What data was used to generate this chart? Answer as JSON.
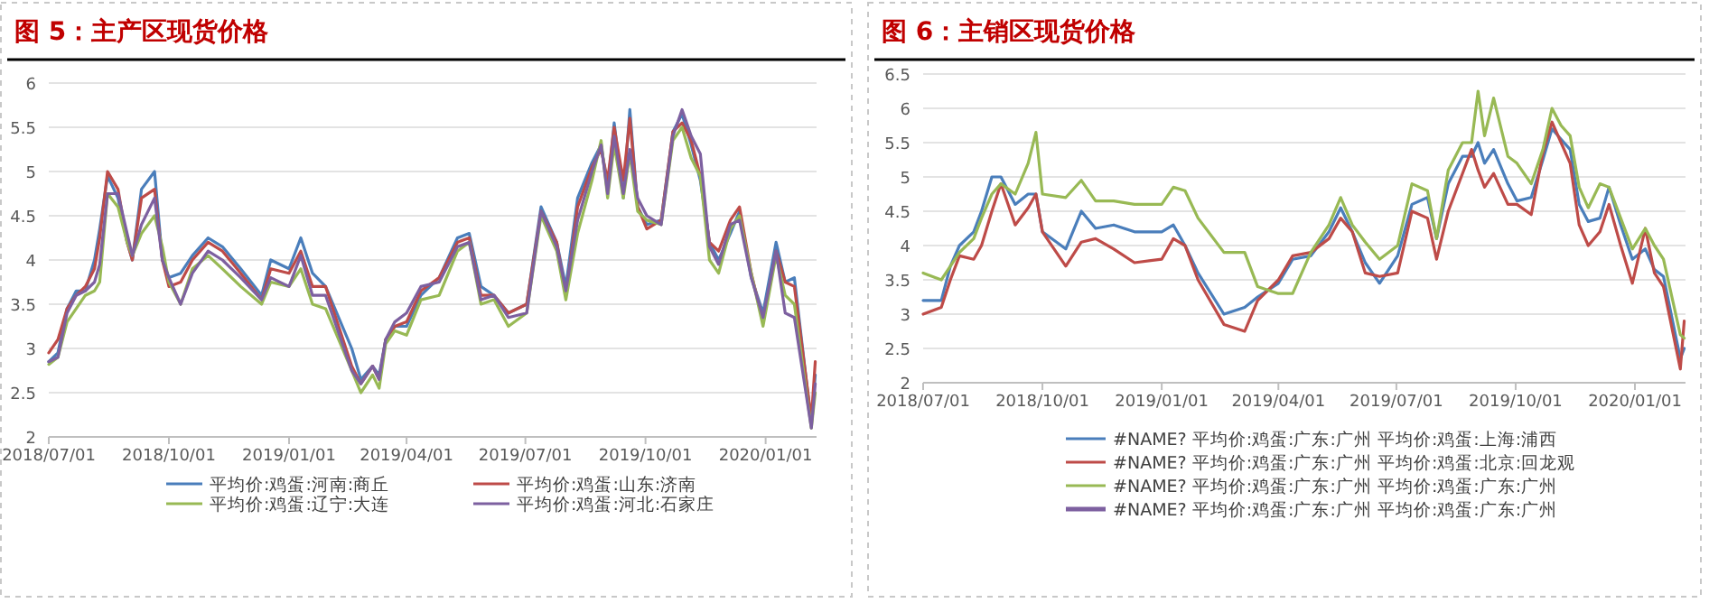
{
  "chart_data": [
    {
      "type": "line",
      "title": "图 5：主产区现货价格",
      "grid": "y",
      "legend": "bottom",
      "x": [
        "2018-07-01",
        "2018-07-08",
        "2018-07-15",
        "2018-07-22",
        "2018-07-29",
        "2018-08-05",
        "2018-08-09",
        "2018-08-15",
        "2018-08-23",
        "2018-08-30",
        "2018-09-03",
        "2018-09-10",
        "2018-09-20",
        "2018-09-26",
        "2018-10-01",
        "2018-10-10",
        "2018-10-19",
        "2018-10-31",
        "2018-11-11",
        "2018-11-25",
        "2018-12-11",
        "2018-12-18",
        "2019-01-01",
        "2019-01-10",
        "2019-01-19",
        "2019-01-29",
        "2019-02-18",
        "2019-02-25",
        "2019-03-06",
        "2019-03-11",
        "2019-03-16",
        "2019-03-23",
        "2019-04-01",
        "2019-04-12",
        "2019-04-26",
        "2019-05-10",
        "2019-05-19",
        "2019-05-28",
        "2019-06-07",
        "2019-06-18",
        "2019-07-02",
        "2019-07-13",
        "2019-07-25",
        "2019-08-01",
        "2019-08-10",
        "2019-08-21",
        "2019-08-28",
        "2019-09-02",
        "2019-09-07",
        "2019-09-14",
        "2019-09-19",
        "2019-09-25",
        "2019-10-02",
        "2019-10-13",
        "2019-10-22",
        "2019-10-29",
        "2019-11-05",
        "2019-11-12",
        "2019-11-19",
        "2019-11-26",
        "2019-12-05",
        "2019-12-12",
        "2019-12-21",
        "2019-12-30",
        "2020-01-09",
        "2020-01-16",
        "2020-01-23",
        "2020-02-05",
        "2020-02-08"
      ],
      "xlim": [
        "2018-07-01",
        "2020-02-09"
      ],
      "xticks": [
        {
          "value": "2018-07-01",
          "label": "2018/07/01"
        },
        {
          "value": "2018-10-01",
          "label": "2018/10/01"
        },
        {
          "value": "2019-01-01",
          "label": "2019/01/01"
        },
        {
          "value": "2019-04-01",
          "label": "2019/04/01"
        },
        {
          "value": "2019-07-01",
          "label": "2019/07/01"
        },
        {
          "value": "2019-10-01",
          "label": "2019/10/01"
        },
        {
          "value": "2020-01-01",
          "label": "2020/01/01"
        }
      ],
      "ylim": [
        2,
        6
      ],
      "yticks": [
        2,
        2.5,
        3,
        3.5,
        4,
        4.5,
        5,
        5.5,
        6
      ],
      "series": [
        {
          "name": "平均价:鸡蛋:河南:商丘",
          "color": "#4a7ebb",
          "values": [
            2.85,
            2.95,
            3.45,
            3.65,
            3.65,
            4.0,
            4.35,
            4.95,
            4.7,
            4.2,
            4.0,
            4.8,
            5.0,
            4.0,
            3.8,
            3.85,
            4.05,
            4.25,
            4.15,
            3.9,
            3.6,
            4.0,
            3.9,
            4.25,
            3.85,
            3.7,
            3.0,
            2.65,
            2.8,
            2.7,
            3.1,
            3.25,
            3.25,
            3.6,
            3.8,
            4.25,
            4.3,
            3.7,
            3.6,
            3.4,
            3.5,
            4.6,
            4.2,
            3.7,
            4.7,
            5.1,
            5.3,
            4.8,
            5.55,
            4.7,
            5.7,
            4.6,
            4.4,
            4.45,
            5.45,
            5.65,
            5.3,
            4.9,
            4.2,
            4.0,
            4.3,
            4.55,
            3.8,
            3.4,
            4.2,
            3.75,
            3.8,
            2.15,
            2.7
          ]
        },
        {
          "name": "平均价:鸡蛋:山东:济南",
          "color": "#be4b48",
          "values": [
            2.95,
            3.1,
            3.45,
            3.6,
            3.7,
            3.9,
            4.25,
            5.0,
            4.8,
            4.2,
            4.0,
            4.7,
            4.8,
            4.0,
            3.7,
            3.75,
            4.0,
            4.2,
            4.1,
            3.85,
            3.55,
            3.9,
            3.85,
            4.1,
            3.7,
            3.7,
            2.8,
            2.6,
            2.8,
            2.65,
            3.1,
            3.25,
            3.3,
            3.65,
            3.8,
            4.2,
            4.25,
            3.6,
            3.6,
            3.4,
            3.5,
            4.55,
            4.2,
            3.6,
            4.6,
            5.05,
            5.25,
            4.9,
            5.5,
            4.9,
            5.6,
            4.6,
            4.35,
            4.45,
            5.45,
            5.55,
            5.35,
            4.95,
            4.2,
            4.1,
            4.45,
            4.6,
            3.85,
            3.3,
            4.1,
            3.75,
            3.7,
            2.2,
            2.85
          ]
        },
        {
          "name": "平均价:鸡蛋:辽宁:大连",
          "color": "#98b954",
          "values": [
            2.82,
            2.9,
            3.3,
            3.45,
            3.6,
            3.65,
            3.75,
            4.75,
            4.6,
            4.2,
            4.05,
            4.3,
            4.5,
            4.15,
            3.75,
            3.5,
            3.9,
            4.05,
            3.9,
            3.7,
            3.5,
            3.75,
            3.7,
            3.9,
            3.5,
            3.45,
            2.75,
            2.5,
            2.7,
            2.55,
            3.05,
            3.2,
            3.15,
            3.55,
            3.6,
            4.1,
            4.2,
            3.5,
            3.55,
            3.25,
            3.4,
            4.5,
            4.1,
            3.55,
            4.3,
            4.9,
            5.35,
            4.7,
            5.3,
            4.7,
            5.2,
            4.55,
            4.45,
            4.4,
            5.35,
            5.5,
            5.15,
            4.95,
            4.0,
            3.85,
            4.35,
            4.5,
            3.85,
            3.25,
            4.05,
            3.6,
            3.5,
            2.1,
            2.5
          ]
        },
        {
          "name": "平均价:鸡蛋:河北:石家庄",
          "color": "#7d60a0",
          "values": [
            2.85,
            2.9,
            3.4,
            3.6,
            3.65,
            3.75,
            3.95,
            4.75,
            4.75,
            4.3,
            4.05,
            4.4,
            4.7,
            4.0,
            3.8,
            3.5,
            3.85,
            4.1,
            4.0,
            3.8,
            3.55,
            3.8,
            3.7,
            4.05,
            3.6,
            3.6,
            2.75,
            2.6,
            2.8,
            2.65,
            3.1,
            3.3,
            3.4,
            3.7,
            3.75,
            4.15,
            4.2,
            3.55,
            3.6,
            3.35,
            3.4,
            4.55,
            4.15,
            3.65,
            4.45,
            5.0,
            5.3,
            4.75,
            5.4,
            4.75,
            5.25,
            4.7,
            4.5,
            4.4,
            5.4,
            5.7,
            5.4,
            5.2,
            4.15,
            3.95,
            4.4,
            4.45,
            3.8,
            3.35,
            4.1,
            3.4,
            3.35,
            2.1,
            2.6
          ]
        }
      ]
    },
    {
      "type": "line",
      "title": "图 6：主销区现货价格",
      "grid": "y",
      "legend": "bottom",
      "x": [
        "2018-07-01",
        "2018-07-15",
        "2018-07-22",
        "2018-07-29",
        "2018-08-09",
        "2018-08-15",
        "2018-08-23",
        "2018-08-30",
        "2018-09-10",
        "2018-09-20",
        "2018-09-26",
        "2018-10-01",
        "2018-10-19",
        "2018-10-31",
        "2018-11-11",
        "2018-11-25",
        "2018-12-11",
        "2019-01-01",
        "2019-01-10",
        "2019-01-19",
        "2019-01-29",
        "2019-02-18",
        "2019-03-06",
        "2019-03-16",
        "2019-04-01",
        "2019-04-12",
        "2019-04-26",
        "2019-05-10",
        "2019-05-19",
        "2019-05-28",
        "2019-06-07",
        "2019-06-18",
        "2019-07-02",
        "2019-07-13",
        "2019-07-25",
        "2019-08-01",
        "2019-08-10",
        "2019-08-21",
        "2019-08-28",
        "2019-09-02",
        "2019-09-07",
        "2019-09-14",
        "2019-09-25",
        "2019-10-02",
        "2019-10-13",
        "2019-10-22",
        "2019-10-29",
        "2019-11-05",
        "2019-11-12",
        "2019-11-19",
        "2019-11-26",
        "2019-12-05",
        "2019-12-12",
        "2019-12-21",
        "2019-12-30",
        "2020-01-09",
        "2020-01-16",
        "2020-01-23",
        "2020-02-05",
        "2020-02-08"
      ],
      "xlim": [
        "2018-07-01",
        "2020-02-09"
      ],
      "xticks": [
        {
          "value": "2018-07-01",
          "label": "2018/07/01"
        },
        {
          "value": "2018-10-01",
          "label": "2018/10/01"
        },
        {
          "value": "2019-01-01",
          "label": "2019/01/01"
        },
        {
          "value": "2019-04-01",
          "label": "2019/04/01"
        },
        {
          "value": "2019-07-01",
          "label": "2019/07/01"
        },
        {
          "value": "2019-10-01",
          "label": "2019/10/01"
        },
        {
          "value": "2020-01-01",
          "label": "2020/01/01"
        }
      ],
      "ylim": [
        2,
        6.5
      ],
      "yticks": [
        2,
        2.5,
        3,
        3.5,
        4,
        4.5,
        5,
        5.5,
        6,
        6.5
      ],
      "series": [
        {
          "name": "#NAME? 平均价:鸡蛋:广东:广州 平均价:鸡蛋:上海:浦西",
          "color": "#4a7ebb",
          "values": [
            3.2,
            3.2,
            3.7,
            4.0,
            4.2,
            4.5,
            5.0,
            5.0,
            4.6,
            4.75,
            4.75,
            4.2,
            3.95,
            4.5,
            4.25,
            4.3,
            4.2,
            4.2,
            4.3,
            4.0,
            3.6,
            3.0,
            3.1,
            3.25,
            3.45,
            3.8,
            3.85,
            4.2,
            4.55,
            4.2,
            3.75,
            3.45,
            3.85,
            4.6,
            4.7,
            4.1,
            4.9,
            5.3,
            5.3,
            5.5,
            5.2,
            5.4,
            4.9,
            4.65,
            4.7,
            5.25,
            5.7,
            5.55,
            5.4,
            4.6,
            4.35,
            4.4,
            4.85,
            4.3,
            3.8,
            3.95,
            3.65,
            3.55,
            2.35,
            2.5
          ]
        },
        {
          "name": "#NAME? 平均价:鸡蛋:广东:广州 平均价:鸡蛋:北京:回龙观",
          "color": "#be4b48",
          "values": [
            3.0,
            3.1,
            3.5,
            3.85,
            3.8,
            4.0,
            4.5,
            4.9,
            4.3,
            4.55,
            4.75,
            4.2,
            3.7,
            4.05,
            4.1,
            3.95,
            3.75,
            3.8,
            4.1,
            4.0,
            3.5,
            2.85,
            2.75,
            3.2,
            3.5,
            3.85,
            3.9,
            4.1,
            4.4,
            4.2,
            3.6,
            3.55,
            3.6,
            4.5,
            4.4,
            3.8,
            4.5,
            5.05,
            5.4,
            5.1,
            4.85,
            5.05,
            4.6,
            4.6,
            4.45,
            5.35,
            5.8,
            5.5,
            5.2,
            4.3,
            4.0,
            4.2,
            4.6,
            4.0,
            3.45,
            4.25,
            3.6,
            3.4,
            2.2,
            2.9
          ]
        },
        {
          "name": "#NAME? 平均价:鸡蛋:广东:广州 平均价:鸡蛋:广东:广州",
          "color": "#98b954",
          "values": [
            3.6,
            3.5,
            3.7,
            3.9,
            4.1,
            4.4,
            4.75,
            4.9,
            4.75,
            5.2,
            5.65,
            4.75,
            4.7,
            4.95,
            4.65,
            4.65,
            4.6,
            4.6,
            4.85,
            4.8,
            4.4,
            3.9,
            3.9,
            3.4,
            3.3,
            3.3,
            3.9,
            4.3,
            4.7,
            4.3,
            4.05,
            3.8,
            4.0,
            4.9,
            4.8,
            4.1,
            5.1,
            5.5,
            5.5,
            6.25,
            5.6,
            6.15,
            5.3,
            5.2,
            4.9,
            5.4,
            6.0,
            5.75,
            5.6,
            4.85,
            4.55,
            4.9,
            4.85,
            4.4,
            3.95,
            4.25,
            4.0,
            3.8,
            2.7,
            2.65
          ]
        },
        {
          "name": "#NAME? 平均价:鸡蛋:广东:广州 平均价:鸡蛋:广东:广州",
          "color": "#7d60a0",
          "values": [
            null,
            null,
            null,
            null,
            null,
            null,
            null,
            null,
            null,
            null,
            null,
            null,
            null,
            null,
            null,
            null,
            null,
            null,
            null,
            null,
            null,
            null,
            null,
            null,
            null,
            null,
            null,
            null,
            null,
            null,
            null,
            null,
            null,
            null,
            null,
            null,
            null,
            null,
            null,
            null,
            null,
            null,
            null,
            null,
            null,
            null,
            null,
            null,
            null,
            null,
            null,
            null,
            null,
            null,
            null,
            null,
            null,
            null,
            null,
            null
          ]
        }
      ]
    }
  ]
}
